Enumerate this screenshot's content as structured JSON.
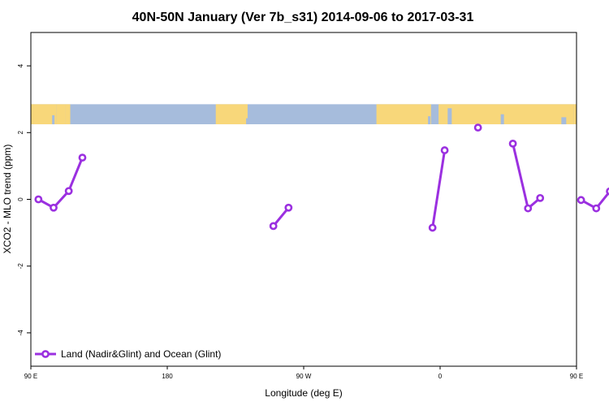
{
  "chart_data": {
    "type": "line",
    "title": "40N-50N January (Ver 7b_s31)   2014-09-06 to 2017-03-31",
    "xlabel": "Longitude (deg E)",
    "ylabel": "XCO2 - MLO trend (ppm)",
    "xlim": [
      90,
      450
    ],
    "ylim": [
      -5,
      5
    ],
    "x_ticks": [
      {
        "value": 90,
        "label": "90 E"
      },
      {
        "value": 180,
        "label": "180"
      },
      {
        "value": 270,
        "label": "90 W"
      },
      {
        "value": 360,
        "label": "0"
      },
      {
        "value": 450,
        "label": "90 E"
      },
      {
        "value": 540,
        "label": "180"
      }
    ],
    "y_ticks": [
      {
        "value": -4,
        "label": "-4"
      },
      {
        "value": -2,
        "label": "-2"
      },
      {
        "value": 0,
        "label": "0"
      },
      {
        "value": 2,
        "label": "2"
      },
      {
        "value": 4,
        "label": "4"
      }
    ],
    "map_band": {
      "ymin": 2.25,
      "ymax": 2.85,
      "land_color": "#f8d77a",
      "ocean_color": "#a6bcdc"
    },
    "legend": {
      "position": "bottom-left"
    },
    "series": [
      {
        "name": "Land (Nadir&Glint) and Ocean (Glint)",
        "color": "#9b30e0",
        "segments": [
          [
            [
              95,
              0.0
            ],
            [
              105,
              -0.25
            ],
            [
              115,
              0.25
            ],
            [
              124,
              1.25
            ]
          ],
          [
            [
              250,
              -0.8
            ],
            [
              260,
              -0.25
            ]
          ],
          [
            [
              355,
              -0.85
            ],
            [
              363,
              1.47
            ]
          ],
          [
            [
              385,
              2.15
            ]
          ],
          [
            [
              408,
              1.67
            ],
            [
              418,
              -0.27
            ],
            [
              426,
              0.04
            ]
          ],
          [
            [
              453,
              -0.02
            ],
            [
              463,
              -0.27
            ],
            [
              472,
              0.24
            ],
            [
              481,
              1.24
            ]
          ]
        ]
      }
    ]
  }
}
